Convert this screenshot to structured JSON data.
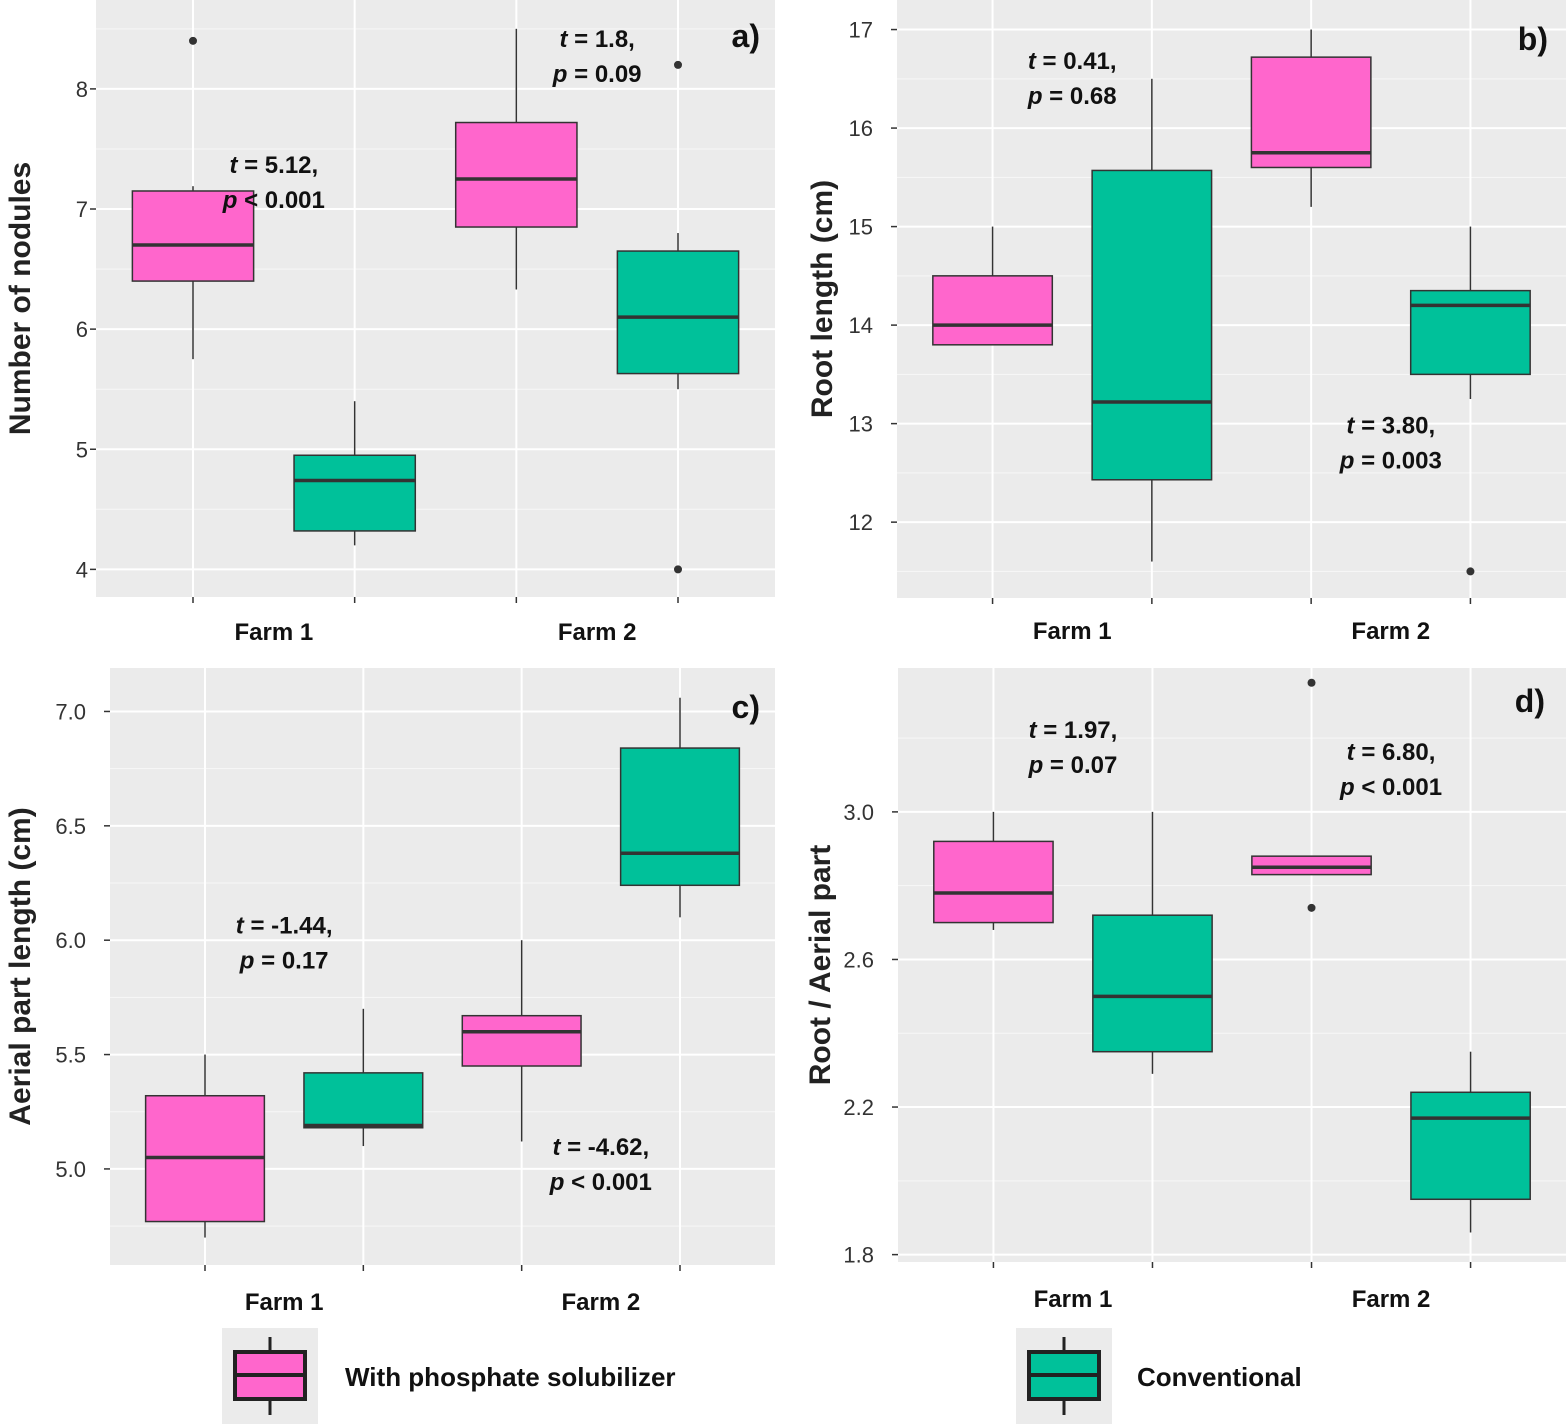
{
  "colors": {
    "treated": "#FF66CC",
    "conventional": "#00C19A",
    "panel_bg": "#EBEBEB",
    "box_line": "#333333"
  },
  "legend": [
    {
      "key": "treated",
      "label": "With phosphate solubilizer"
    },
    {
      "key": "conventional",
      "label": "Conventional"
    }
  ],
  "chart_data": [
    {
      "type": "box",
      "panel": "a)",
      "ylabel": "Number of nodules",
      "ylim": [
        3.77,
        8.74
      ],
      "yticks": [
        4,
        5,
        6,
        7,
        8
      ],
      "categories": [
        "Farm 1",
        "Farm 2"
      ],
      "boxes": [
        {
          "farm": "Farm 1",
          "group": "treated",
          "min": 5.75,
          "q1": 6.4,
          "median": 6.7,
          "q3": 7.15,
          "max": 7.19,
          "outliers": [
            8.4
          ]
        },
        {
          "farm": "Farm 1",
          "group": "conventional",
          "min": 4.2,
          "q1": 4.32,
          "median": 4.74,
          "q3": 4.95,
          "max": 5.4,
          "outliers": []
        },
        {
          "farm": "Farm 2",
          "group": "treated",
          "min": 6.33,
          "q1": 6.85,
          "median": 7.25,
          "q3": 7.72,
          "max": 8.5,
          "outliers": []
        },
        {
          "farm": "Farm 2",
          "group": "conventional",
          "min": 5.5,
          "q1": 5.63,
          "median": 6.1,
          "q3": 6.65,
          "max": 6.8,
          "outliers": [
            8.2,
            4.0
          ]
        }
      ],
      "annotations": [
        {
          "line1": "t = 5.12,",
          "line2": "p < 0.001",
          "farm": "Farm 1",
          "y": 7.3
        },
        {
          "line1": "t = 1.8,",
          "line2": "p = 0.09",
          "farm": "Farm 2",
          "y": 8.35
        }
      ]
    },
    {
      "type": "box",
      "panel": "b)",
      "ylabel": "Root length (cm)",
      "ylim": [
        11.23,
        17.3
      ],
      "yticks": [
        12,
        13,
        14,
        15,
        16,
        17
      ],
      "categories": [
        "Farm 1",
        "Farm 2"
      ],
      "boxes": [
        {
          "farm": "Farm 1",
          "group": "treated",
          "min": 13.8,
          "q1": 13.8,
          "median": 14.0,
          "q3": 14.5,
          "max": 15.0,
          "outliers": []
        },
        {
          "farm": "Farm 1",
          "group": "conventional",
          "min": 11.6,
          "q1": 12.43,
          "median": 13.22,
          "q3": 15.57,
          "max": 16.5,
          "outliers": []
        },
        {
          "farm": "Farm 2",
          "group": "treated",
          "min": 15.2,
          "q1": 15.6,
          "median": 15.75,
          "q3": 16.72,
          "max": 17.0,
          "outliers": []
        },
        {
          "farm": "Farm 2",
          "group": "conventional",
          "min": 13.25,
          "q1": 13.5,
          "median": 14.2,
          "q3": 14.35,
          "max": 15.0,
          "outliers": [
            11.5
          ]
        }
      ],
      "annotations": [
        {
          "line1": "t = 0.41,",
          "line2": "p = 0.68",
          "farm": "Farm 1",
          "y": 16.6
        },
        {
          "line1": "t = 3.80,",
          "line2": "p = 0.003",
          "farm": "Farm 2",
          "y": 12.9
        }
      ]
    },
    {
      "type": "box",
      "panel": "c)",
      "ylabel": "Aerial part length (cm)",
      "ylim": [
        4.58,
        7.19
      ],
      "yticks": [
        5.0,
        5.5,
        6.0,
        6.5,
        7.0
      ],
      "categories": [
        "Farm 1",
        "Farm 2"
      ],
      "boxes": [
        {
          "farm": "Farm 1",
          "group": "treated",
          "min": 4.7,
          "q1": 4.77,
          "median": 5.05,
          "q3": 5.32,
          "max": 5.5,
          "outliers": []
        },
        {
          "farm": "Farm 1",
          "group": "conventional",
          "min": 5.1,
          "q1": 5.18,
          "median": 5.19,
          "q3": 5.42,
          "max": 5.7,
          "outliers": []
        },
        {
          "farm": "Farm 2",
          "group": "treated",
          "min": 5.12,
          "q1": 5.45,
          "median": 5.6,
          "q3": 5.67,
          "max": 6.0,
          "outliers": []
        },
        {
          "farm": "Farm 2",
          "group": "conventional",
          "min": 6.1,
          "q1": 6.24,
          "median": 6.38,
          "q3": 6.84,
          "max": 7.06,
          "outliers": []
        }
      ],
      "annotations": [
        {
          "line1": "t = -1.44,",
          "line2": "p = 0.17",
          "farm": "Farm 1",
          "y": 6.03
        },
        {
          "line1": "t = -4.62,",
          "line2": "p < 0.001",
          "farm": "Farm 2",
          "y": 5.06
        }
      ]
    },
    {
      "type": "box",
      "panel": "d)",
      "ylabel": "Root / Aerial part",
      "ylim": [
        1.78,
        3.39
      ],
      "yticks": [
        1.8,
        2.2,
        2.6,
        3.0
      ],
      "categories": [
        "Farm 1",
        "Farm 2"
      ],
      "boxes": [
        {
          "farm": "Farm 1",
          "group": "treated",
          "min": 2.68,
          "q1": 2.7,
          "median": 2.78,
          "q3": 2.92,
          "max": 3.0,
          "outliers": []
        },
        {
          "farm": "Farm 1",
          "group": "conventional",
          "min": 2.29,
          "q1": 2.35,
          "median": 2.5,
          "q3": 2.72,
          "max": 3.0,
          "outliers": []
        },
        {
          "farm": "Farm 2",
          "group": "treated",
          "min": 2.83,
          "q1": 2.83,
          "median": 2.85,
          "q3": 2.88,
          "max": 2.88,
          "outliers": [
            3.35,
            2.74
          ]
        },
        {
          "farm": "Farm 2",
          "group": "conventional",
          "min": 1.86,
          "q1": 1.95,
          "median": 2.17,
          "q3": 2.24,
          "max": 2.35,
          "outliers": []
        }
      ],
      "annotations": [
        {
          "line1": "t = 1.97,",
          "line2": "p = 0.07",
          "farm": "Farm 1",
          "y": 3.2
        },
        {
          "line1": "t = 6.80,",
          "line2": "p < 0.001",
          "farm": "Farm 2",
          "y": 3.14
        }
      ]
    }
  ]
}
